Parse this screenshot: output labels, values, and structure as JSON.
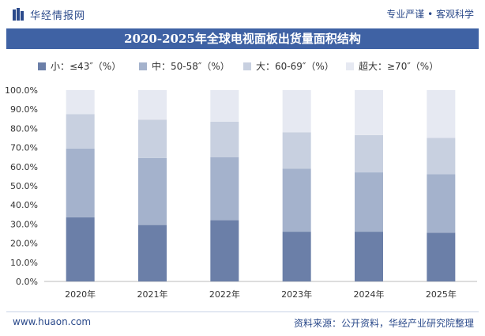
{
  "header": {
    "brand": "华经情报网",
    "tagline": "专业严谨 • 客观科学"
  },
  "footer": {
    "url": "www.huaon.com",
    "source": "资料来源：公开资料，华经产业研究院整理"
  },
  "colors": {
    "title_bar": "#3f62a4",
    "brand": "#2b4a8b",
    "series": [
      "#6b7fa8",
      "#a4b2cc",
      "#c8d0e0",
      "#e6e9f2"
    ]
  },
  "icons": [
    "logo-icon"
  ],
  "chart_data": {
    "type": "bar",
    "stacked": true,
    "title": "2020-2025年全球电视面板出货量面积结构",
    "categories": [
      "2020年",
      "2021年",
      "2022年",
      "2023年",
      "2024年",
      "2025年"
    ],
    "series": [
      {
        "name": "小：≤43″（%）",
        "values": [
          33.5,
          29.5,
          32.0,
          26.0,
          26.0,
          25.5
        ]
      },
      {
        "name": "中：50-58″（%）",
        "values": [
          36.0,
          35.0,
          33.0,
          33.0,
          31.0,
          30.5
        ]
      },
      {
        "name": "大：60-69″（%）",
        "values": [
          18.0,
          20.0,
          18.5,
          19.0,
          19.5,
          19.0
        ]
      },
      {
        "name": "超大：≥70″（%）",
        "values": [
          12.5,
          15.5,
          16.5,
          22.0,
          23.5,
          25.0
        ]
      }
    ],
    "y_ticks": [
      "0.0%",
      "10.0%",
      "20.0%",
      "30.0%",
      "40.0%",
      "50.0%",
      "60.0%",
      "70.0%",
      "80.0%",
      "90.0%",
      "100.0%"
    ],
    "ylim": [
      0,
      100
    ],
    "legend_position": "top",
    "grid": false
  }
}
